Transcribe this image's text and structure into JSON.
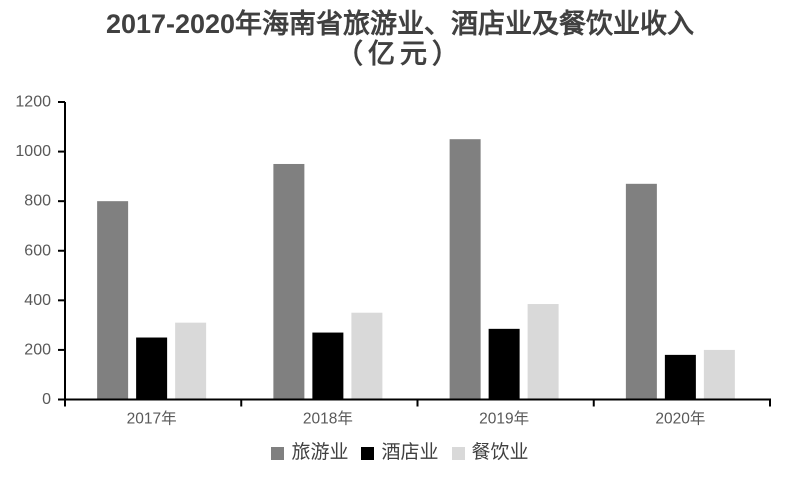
{
  "chart_data": {
    "type": "bar",
    "title": "2017-2020年海南省旅游业、酒店业及餐饮业收入",
    "title_line2": "（亿元）",
    "categories": [
      "2017年",
      "2018年",
      "2019年",
      "2020年"
    ],
    "series": [
      {
        "name": "旅游业",
        "color": "#808080",
        "values": [
          800,
          950,
          1050,
          870
        ]
      },
      {
        "name": "酒店业",
        "color": "#000000",
        "values": [
          250,
          270,
          285,
          180
        ]
      },
      {
        "name": "餐饮业",
        "color": "#d9d9d9",
        "values": [
          310,
          350,
          385,
          200
        ]
      }
    ],
    "ylim": [
      0,
      1200
    ],
    "ytick_step": 200,
    "ytick_labels": [
      "0",
      "200",
      "400",
      "600",
      "800",
      "1000",
      "1200"
    ],
    "grid": false,
    "legend_position": "bottom",
    "xlabel": "",
    "ylabel": "",
    "axis_color": "#000000",
    "tick_label_color": "#595959",
    "title_color": "#404040"
  }
}
